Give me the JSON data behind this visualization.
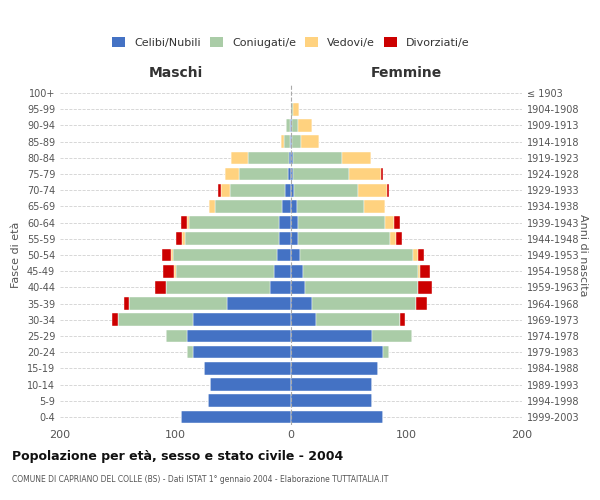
{
  "age_groups": [
    "0-4",
    "5-9",
    "10-14",
    "15-19",
    "20-24",
    "25-29",
    "30-34",
    "35-39",
    "40-44",
    "45-49",
    "50-54",
    "55-59",
    "60-64",
    "65-69",
    "70-74",
    "75-79",
    "80-84",
    "85-89",
    "90-94",
    "95-99",
    "100+"
  ],
  "birth_years": [
    "1999-2003",
    "1994-1998",
    "1989-1993",
    "1984-1988",
    "1979-1983",
    "1974-1978",
    "1969-1973",
    "1964-1968",
    "1959-1963",
    "1954-1958",
    "1949-1953",
    "1944-1948",
    "1939-1943",
    "1934-1938",
    "1929-1933",
    "1924-1928",
    "1919-1923",
    "1914-1918",
    "1909-1913",
    "1904-1908",
    "≤ 1903"
  ],
  "male": {
    "celibi": [
      95,
      72,
      70,
      75,
      85,
      90,
      85,
      55,
      18,
      15,
      12,
      10,
      10,
      8,
      5,
      3,
      2,
      1,
      1,
      0,
      0
    ],
    "coniugati": [
      0,
      0,
      0,
      0,
      5,
      18,
      65,
      85,
      90,
      85,
      90,
      82,
      78,
      58,
      48,
      42,
      35,
      5,
      3,
      0,
      0
    ],
    "vedovi": [
      0,
      0,
      0,
      0,
      0,
      0,
      0,
      0,
      0,
      1,
      2,
      2,
      2,
      5,
      8,
      12,
      15,
      3,
      0,
      0,
      0
    ],
    "divorziati": [
      0,
      0,
      0,
      0,
      0,
      0,
      5,
      5,
      10,
      10,
      8,
      6,
      5,
      0,
      2,
      0,
      0,
      0,
      0,
      0,
      0
    ]
  },
  "female": {
    "nubili": [
      80,
      70,
      70,
      75,
      80,
      70,
      22,
      18,
      12,
      10,
      8,
      6,
      6,
      5,
      3,
      2,
      2,
      1,
      1,
      0,
      0
    ],
    "coniugate": [
      0,
      0,
      0,
      0,
      5,
      35,
      72,
      90,
      98,
      100,
      98,
      80,
      75,
      58,
      55,
      48,
      42,
      8,
      5,
      2,
      0
    ],
    "vedove": [
      0,
      0,
      0,
      0,
      0,
      0,
      0,
      0,
      0,
      2,
      4,
      5,
      8,
      18,
      25,
      28,
      25,
      15,
      12,
      5,
      0
    ],
    "divorziate": [
      0,
      0,
      0,
      0,
      0,
      0,
      5,
      10,
      12,
      8,
      5,
      5,
      5,
      0,
      2,
      2,
      0,
      0,
      0,
      0,
      0
    ]
  },
  "colors": {
    "celibi": "#4472C4",
    "coniugati": "#AACCA7",
    "vedovi": "#FFD27F",
    "divorziati": "#CC0000"
  },
  "title": "Popolazione per età, sesso e stato civile - 2004",
  "subtitle": "COMUNE DI CAPRIANO DEL COLLE (BS) - Dati ISTAT 1° gennaio 2004 - Elaborazione TUTTAITALIA.IT",
  "xlabel_left": "Maschi",
  "xlabel_right": "Femmine",
  "ylabel_left": "Fasce di età",
  "ylabel_right": "Anni di nascita",
  "xlim": 200,
  "bg_color": "#ffffff",
  "grid_color": "#cccccc"
}
